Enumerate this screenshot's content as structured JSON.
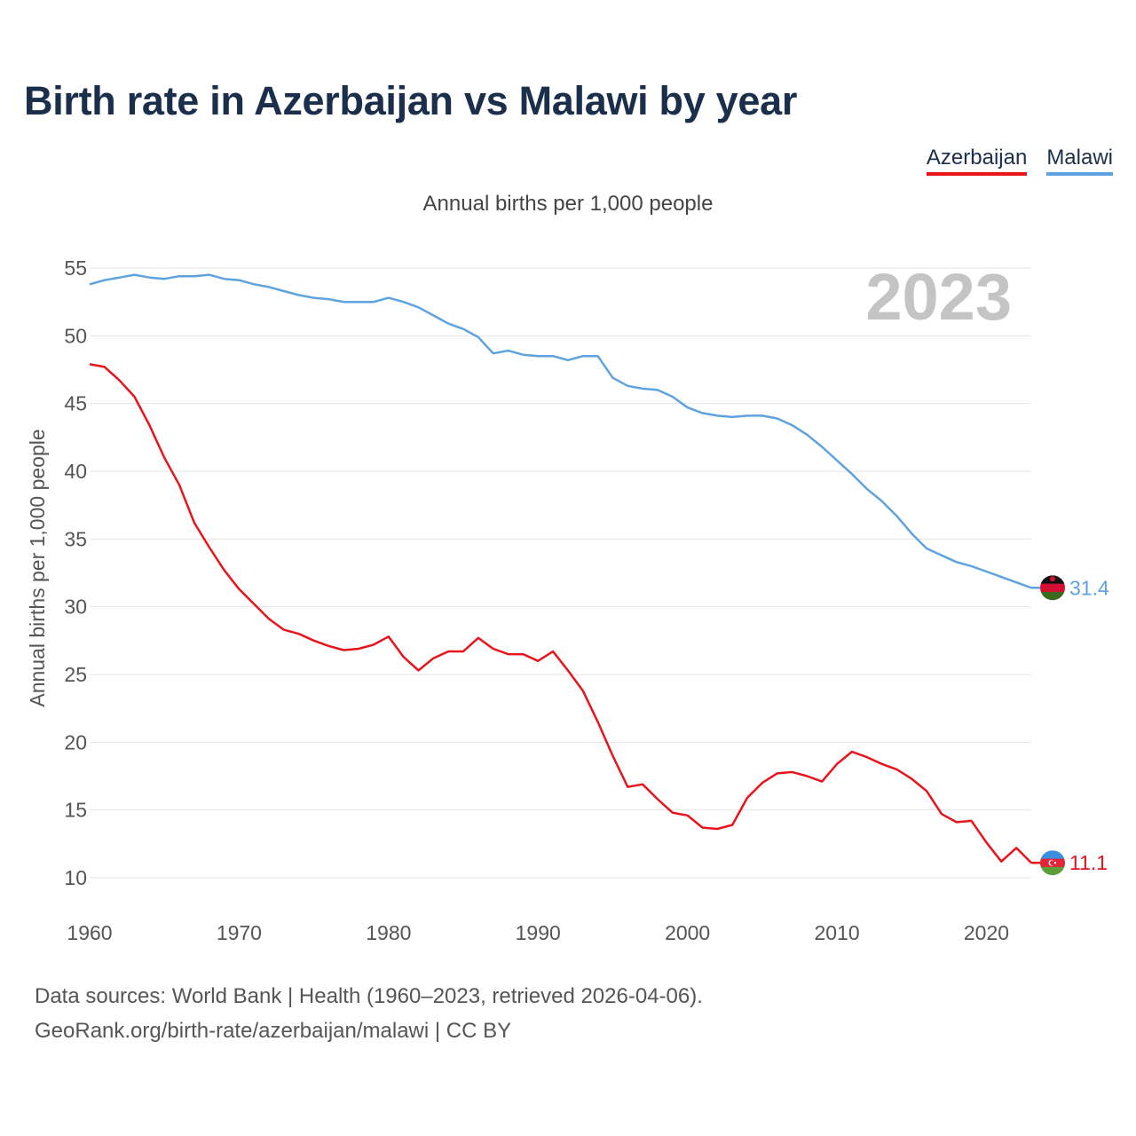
{
  "title": "Birth rate in Azerbaijan vs Malawi by year",
  "subtitle": "Annual births per 1,000 people",
  "legend": [
    {
      "label": "Azerbaijan",
      "color": "#e8141c"
    },
    {
      "label": "Malawi",
      "color": "#5ea3e0"
    }
  ],
  "year_watermark": "2023",
  "footer": {
    "line1": "Data sources: World Bank | Health (1960–2023, retrieved 2026-04-06).",
    "line2": "GeoRank.org/birth-rate/azerbaijan/malawi | CC BY"
  },
  "chart_data": {
    "type": "line",
    "title": "Birth rate in Azerbaijan vs Malawi by year",
    "ylabel": "Annual births per 1,000 people",
    "xlabel": "",
    "xlim": [
      1960,
      2023
    ],
    "ylim": [
      10,
      55
    ],
    "xticks": [
      1960,
      1970,
      1980,
      1990,
      2000,
      2010,
      2020
    ],
    "yticks": [
      10,
      15,
      20,
      25,
      30,
      35,
      40,
      45,
      50,
      55
    ],
    "grid": true,
    "x": [
      1960,
      1961,
      1962,
      1963,
      1964,
      1965,
      1966,
      1967,
      1968,
      1969,
      1970,
      1971,
      1972,
      1973,
      1974,
      1975,
      1976,
      1977,
      1978,
      1979,
      1980,
      1981,
      1982,
      1983,
      1984,
      1985,
      1986,
      1987,
      1988,
      1989,
      1990,
      1991,
      1992,
      1993,
      1994,
      1995,
      1996,
      1997,
      1998,
      1999,
      2000,
      2001,
      2002,
      2003,
      2004,
      2005,
      2006,
      2007,
      2008,
      2009,
      2010,
      2011,
      2012,
      2013,
      2014,
      2015,
      2016,
      2017,
      2018,
      2019,
      2020,
      2021,
      2022,
      2023
    ],
    "series": [
      {
        "name": "Azerbaijan",
        "color": "#e8141c",
        "end_label": "11.1",
        "values": [
          47.9,
          47.7,
          46.7,
          45.5,
          43.4,
          41.0,
          39.0,
          36.2,
          34.4,
          32.7,
          31.3,
          30.2,
          29.1,
          28.3,
          28.0,
          27.5,
          27.1,
          26.8,
          26.9,
          27.2,
          27.8,
          26.3,
          25.3,
          26.2,
          26.7,
          26.7,
          27.7,
          26.9,
          26.5,
          26.5,
          26.0,
          26.7,
          25.3,
          23.8,
          21.5,
          19.0,
          16.7,
          16.9,
          15.8,
          14.8,
          14.6,
          13.7,
          13.6,
          13.9,
          15.9,
          17.0,
          17.7,
          17.8,
          17.5,
          17.1,
          18.4,
          19.3,
          18.9,
          18.4,
          18.0,
          17.3,
          16.4,
          14.7,
          14.1,
          14.2,
          12.6,
          11.2,
          12.2,
          11.1
        ]
      },
      {
        "name": "Malawi",
        "color": "#5ea3e0",
        "end_label": "31.4",
        "values": [
          53.8,
          54.1,
          54.3,
          54.5,
          54.3,
          54.2,
          54.4,
          54.4,
          54.5,
          54.2,
          54.1,
          53.8,
          53.6,
          53.3,
          53.0,
          52.8,
          52.7,
          52.5,
          52.5,
          52.5,
          52.8,
          52.5,
          52.1,
          51.5,
          50.9,
          50.5,
          49.9,
          48.7,
          48.9,
          48.6,
          48.5,
          48.5,
          48.2,
          48.5,
          48.5,
          46.9,
          46.3,
          46.1,
          46.0,
          45.5,
          44.7,
          44.3,
          44.1,
          44.0,
          44.1,
          44.1,
          43.9,
          43.4,
          42.7,
          41.8,
          40.8,
          39.8,
          38.7,
          37.8,
          36.7,
          35.4,
          34.3,
          33.8,
          33.3,
          33.0,
          32.6,
          32.2,
          31.8,
          31.4
        ]
      }
    ]
  }
}
